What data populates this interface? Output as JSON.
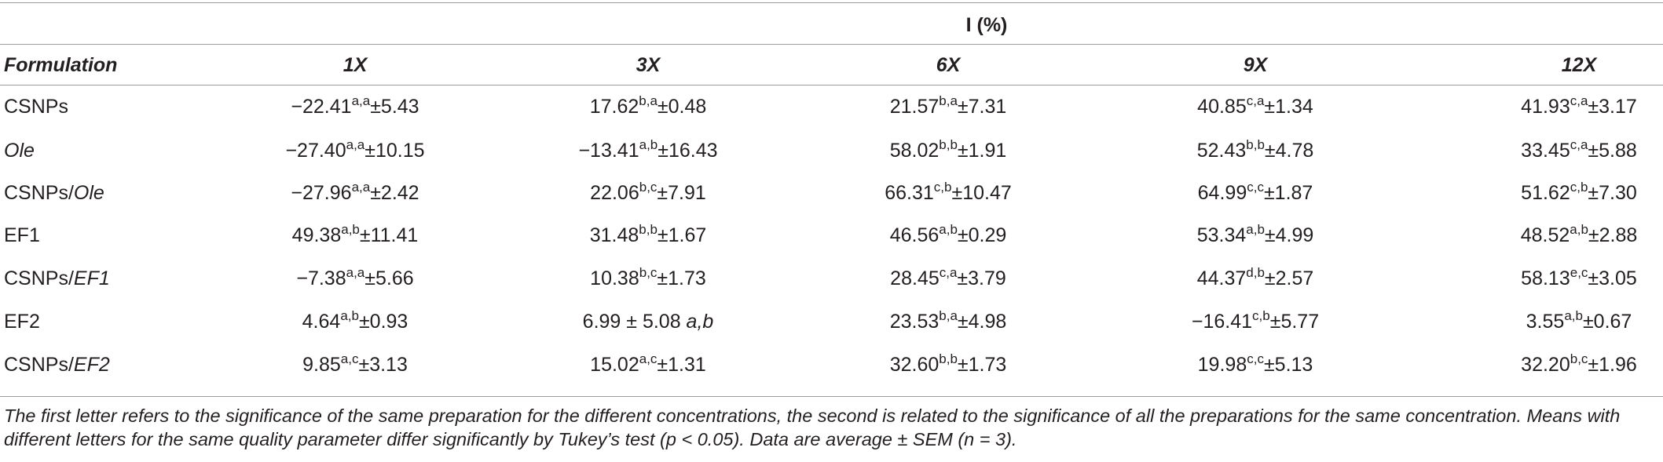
{
  "table": {
    "span_header": "I (%)",
    "columns": [
      "Formulation",
      "1X",
      "3X",
      "6X",
      "9X",
      "12X"
    ],
    "rows": [
      {
        "name": "CSNPs",
        "name_italic": "",
        "cells": [
          {
            "v": "−22.41",
            "s": "a,a",
            "e": "±5.43"
          },
          {
            "v": "17.62",
            "s": "b,a",
            "e": "±0.48"
          },
          {
            "v": "21.57",
            "s": "b,a",
            "e": "±7.31"
          },
          {
            "v": "40.85",
            "s": "c,a",
            "e": "±1.34"
          },
          {
            "v": "41.93",
            "s": "c,a",
            "e": "±3.17"
          }
        ]
      },
      {
        "name": "",
        "name_italic": "Ole",
        "cells": [
          {
            "v": "−27.40",
            "s": "a,a",
            "e": "±10.15"
          },
          {
            "v": "−13.41",
            "s": "a,b",
            "e": "±16.43"
          },
          {
            "v": "58.02",
            "s": "b,b",
            "e": "±1.91"
          },
          {
            "v": "52.43",
            "s": "b,b",
            "e": "±4.78"
          },
          {
            "v": "33.45",
            "s": "c,a",
            "e": "±5.88"
          }
        ]
      },
      {
        "name": "CSNPs/",
        "name_italic": "Ole",
        "cells": [
          {
            "v": "−27.96",
            "s": "a,a",
            "e": "±2.42"
          },
          {
            "v": "22.06",
            "s": "b,c",
            "e": "±7.91"
          },
          {
            "v": "66.31",
            "s": "c,b",
            "e": "±10.47"
          },
          {
            "v": "64.99",
            "s": "c,c",
            "e": "±1.87"
          },
          {
            "v": "51.62",
            "s": "c,b",
            "e": "±7.30"
          }
        ]
      },
      {
        "name": "EF1",
        "name_italic": "",
        "cells": [
          {
            "v": "49.38",
            "s": "a,b",
            "e": "±11.41"
          },
          {
            "v": "31.48",
            "s": "b,b",
            "e": "±1.67"
          },
          {
            "v": "46.56",
            "s": "a,b",
            "e": "±0.29"
          },
          {
            "v": "53.34",
            "s": "a,b",
            "e": "±4.99"
          },
          {
            "v": "48.52",
            "s": "a,b",
            "e": "±2.88"
          }
        ]
      },
      {
        "name": "CSNPs/",
        "name_italic": "EF1",
        "cells": [
          {
            "v": "−7.38",
            "s": "a,a",
            "e": "±5.66"
          },
          {
            "v": "10.38",
            "s": "b,c",
            "e": "±1.73"
          },
          {
            "v": "28.45",
            "s": "c,a",
            "e": "±3.79"
          },
          {
            "v": "44.37",
            "s": "d,b",
            "e": "±2.57"
          },
          {
            "v": "58.13",
            "s": "e,c",
            "e": "±3.05"
          }
        ]
      },
      {
        "name": "EF2",
        "name_italic": "",
        "cells": [
          {
            "v": "4.64",
            "s": "a,b",
            "e": "±0.93"
          },
          {
            "v": "6.99 ± 5.08 ",
            "s": "",
            "e": "",
            "tail_italic": "a,b"
          },
          {
            "v": "23.53",
            "s": "b,a",
            "e": "±4.98"
          },
          {
            "v": "−16.41",
            "s": "c,b",
            "e": "±5.77"
          },
          {
            "v": "3.55",
            "s": "a,b",
            "e": "±0.67"
          }
        ]
      },
      {
        "name": "CSNPs/",
        "name_italic": "EF2",
        "cells": [
          {
            "v": "9.85",
            "s": "a,c",
            "e": "±3.13"
          },
          {
            "v": "15.02",
            "s": "a,c",
            "e": "±1.31"
          },
          {
            "v": "32.60",
            "s": "b,b",
            "e": "±1.73"
          },
          {
            "v": "19.98",
            "s": "c,c",
            "e": "±5.13"
          },
          {
            "v": "32.20",
            "s": "b,c",
            "e": "±1.96"
          }
        ]
      }
    ]
  },
  "footnote": "The first letter refers to the significance of the same preparation for the different concentrations, the second is related to the significance of all the preparations for the same concentration. Means with different letters for the same quality parameter differ significantly by Tukey’s test (p < 0.05). Data are average ± SEM (n = 3)."
}
